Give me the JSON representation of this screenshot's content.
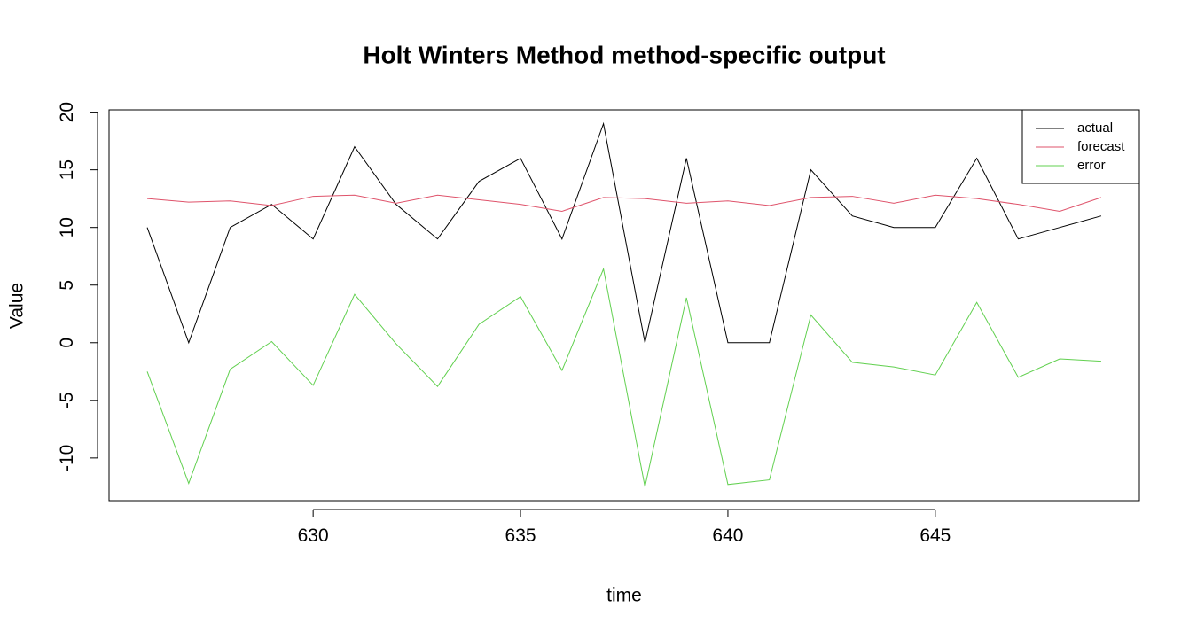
{
  "chart_data": {
    "type": "line",
    "title": "Holt Winters Method method-specific output",
    "xlabel": "time",
    "ylabel": "Value",
    "x": [
      626,
      627,
      628,
      629,
      630,
      631,
      632,
      633,
      634,
      635,
      636,
      637,
      638,
      639,
      640,
      641,
      642,
      643,
      644,
      645,
      646,
      647,
      648,
      649
    ],
    "series": [
      {
        "name": "actual",
        "color": "#000000",
        "values": [
          10,
          0,
          10,
          12,
          9,
          17,
          12,
          9,
          14,
          16,
          9,
          19,
          0,
          16,
          0,
          0,
          15,
          11,
          10,
          10,
          16,
          9,
          10,
          11
        ]
      },
      {
        "name": "forecast",
        "color": "#DF536B",
        "values": [
          12.5,
          12.2,
          12.3,
          11.9,
          12.7,
          12.8,
          12.1,
          12.8,
          12.4,
          12.0,
          11.4,
          12.6,
          12.5,
          12.1,
          12.3,
          11.9,
          12.6,
          12.7,
          12.1,
          12.8,
          12.5,
          12.0,
          11.4,
          12.6
        ]
      },
      {
        "name": "error",
        "color": "#61D04F",
        "values": [
          -2.5,
          -12.2,
          -2.3,
          0.1,
          -3.7,
          4.2,
          -0.1,
          -3.8,
          1.6,
          4.0,
          -2.4,
          6.4,
          -12.5,
          3.9,
          -12.3,
          -11.9,
          2.4,
          -1.7,
          -2.1,
          -2.8,
          3.5,
          -3.0,
          -1.4,
          -1.6
        ]
      }
    ],
    "xlim": [
      625.08,
      649.92
    ],
    "ylim": [
      -13.7,
      20.2
    ],
    "xticks": [
      630,
      635,
      640,
      645
    ],
    "yticks": [
      -10,
      -5,
      0,
      5,
      10,
      15,
      20
    ],
    "legend": "topright"
  }
}
